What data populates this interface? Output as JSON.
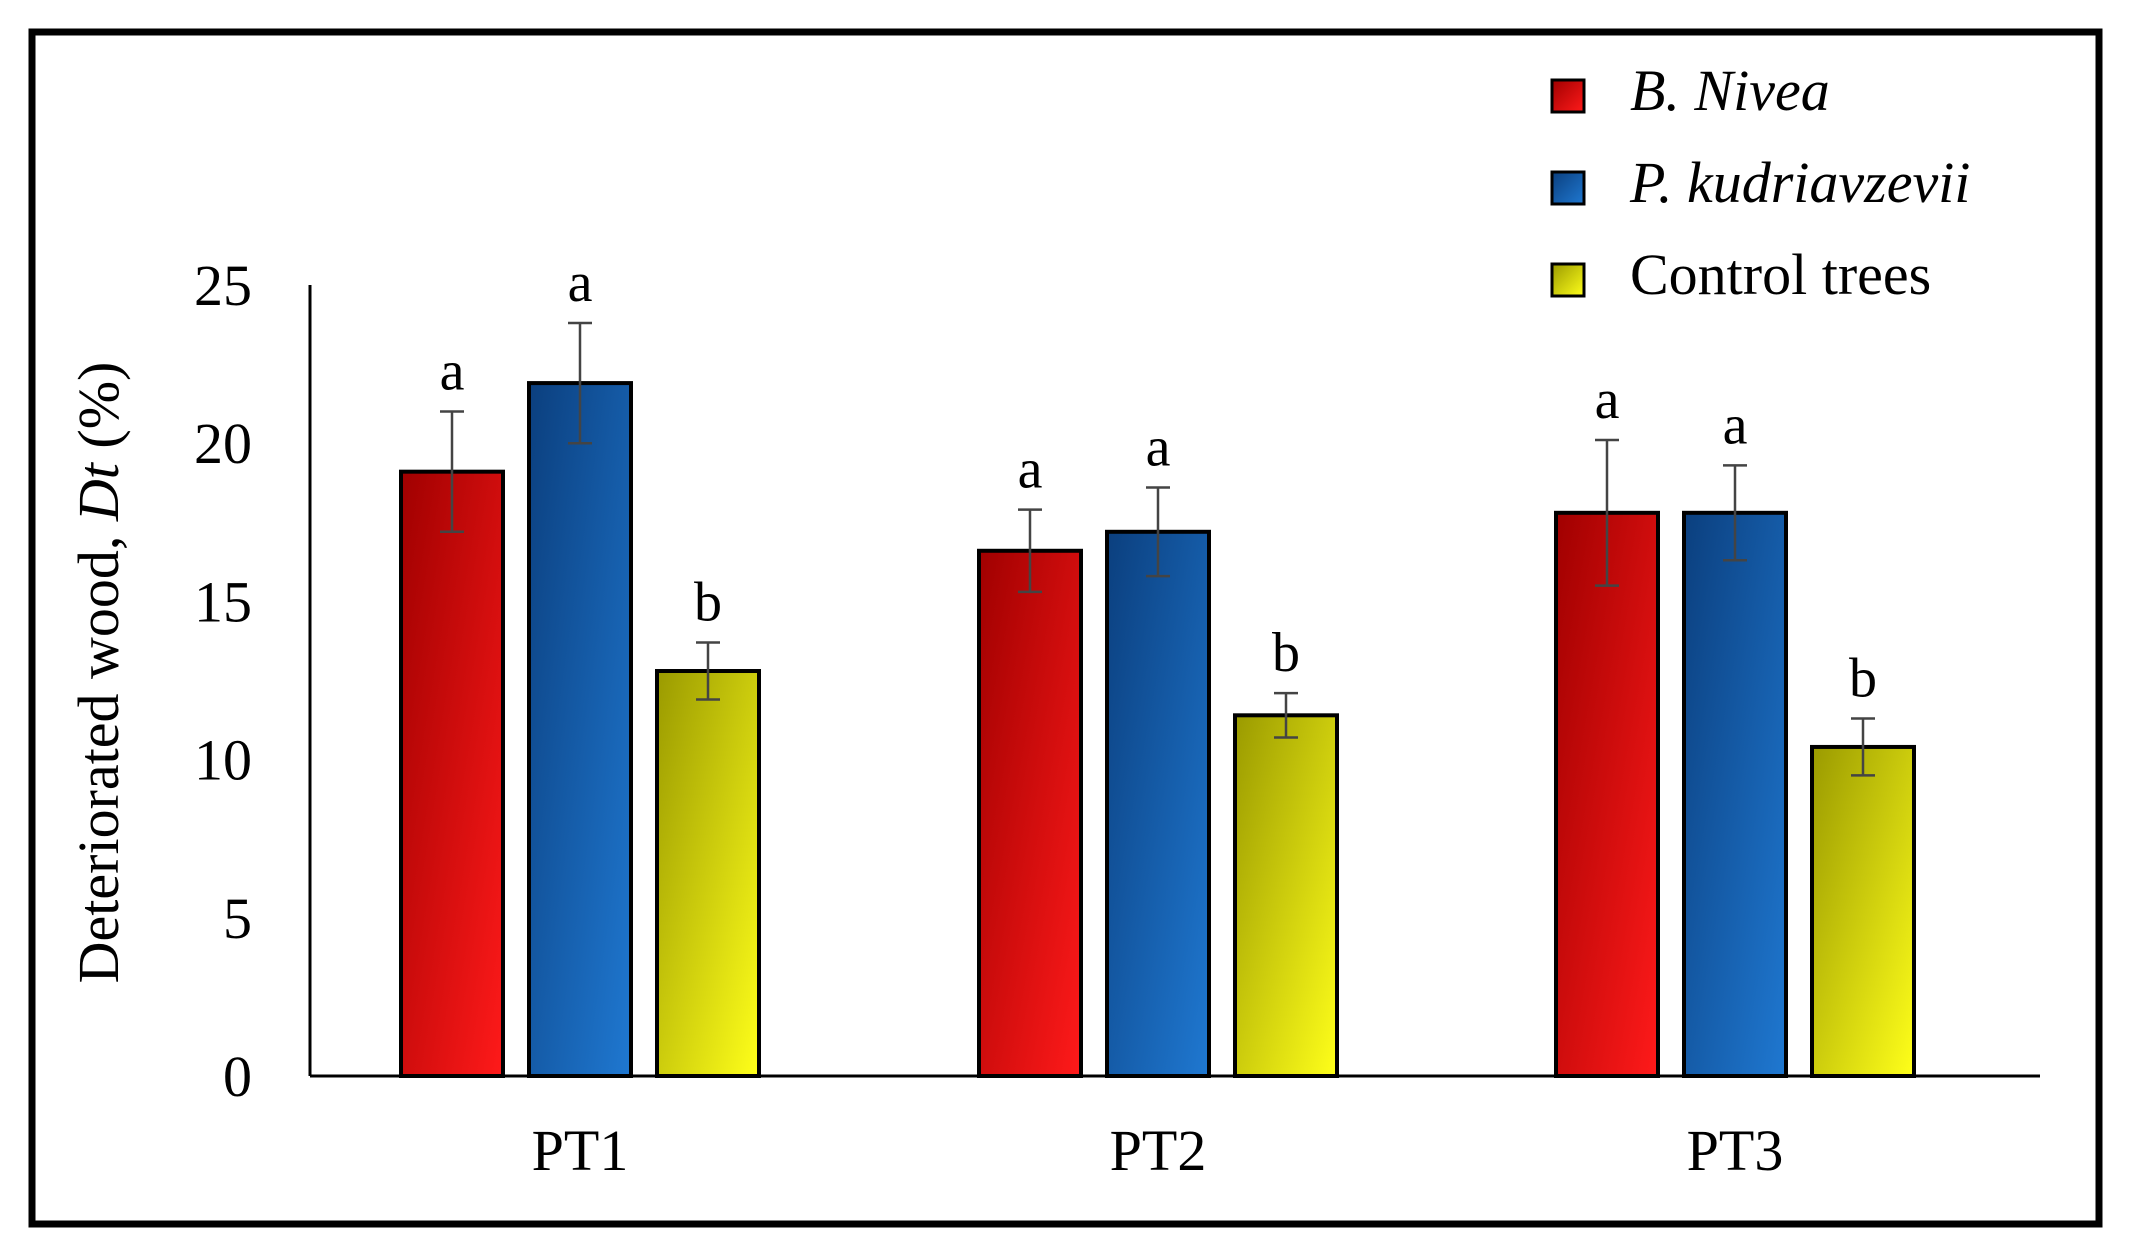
{
  "chart_data": {
    "type": "bar",
    "title": "",
    "xlabel": "",
    "ylabel": {
      "prefix": "Deteriorated wood, ",
      "symbol": "Dt",
      "suffix": " (%)"
    },
    "ylim": [
      0,
      25
    ],
    "yticks": [
      0,
      5,
      10,
      15,
      20,
      25
    ],
    "grid": false,
    "legend_position": "top-right",
    "categories": [
      "PT1",
      "PT2",
      "PT3"
    ],
    "series": [
      {
        "name": "B. Nivea",
        "italic": true,
        "color_dark": "#a00000",
        "color_light": "#ff1a1a",
        "values": [
          19.1,
          16.6,
          17.8
        ],
        "errors": [
          1.9,
          1.3,
          2.3
        ],
        "letters": [
          "a",
          "a",
          "a"
        ]
      },
      {
        "name": "P. kudriavzevii",
        "italic": true,
        "color_dark": "#0b3f7e",
        "color_light": "#1f78d1",
        "values": [
          21.9,
          17.2,
          17.8
        ],
        "errors": [
          1.9,
          1.4,
          1.5
        ],
        "letters": [
          "a",
          "a",
          "a"
        ]
      },
      {
        "name": "Control trees",
        "italic": false,
        "color_dark": "#9a9a00",
        "color_light": "#ffff1a",
        "values": [
          12.8,
          11.4,
          10.4
        ],
        "errors": [
          0.9,
          0.7,
          0.9
        ],
        "letters": [
          "b",
          "b",
          "b"
        ]
      }
    ]
  }
}
